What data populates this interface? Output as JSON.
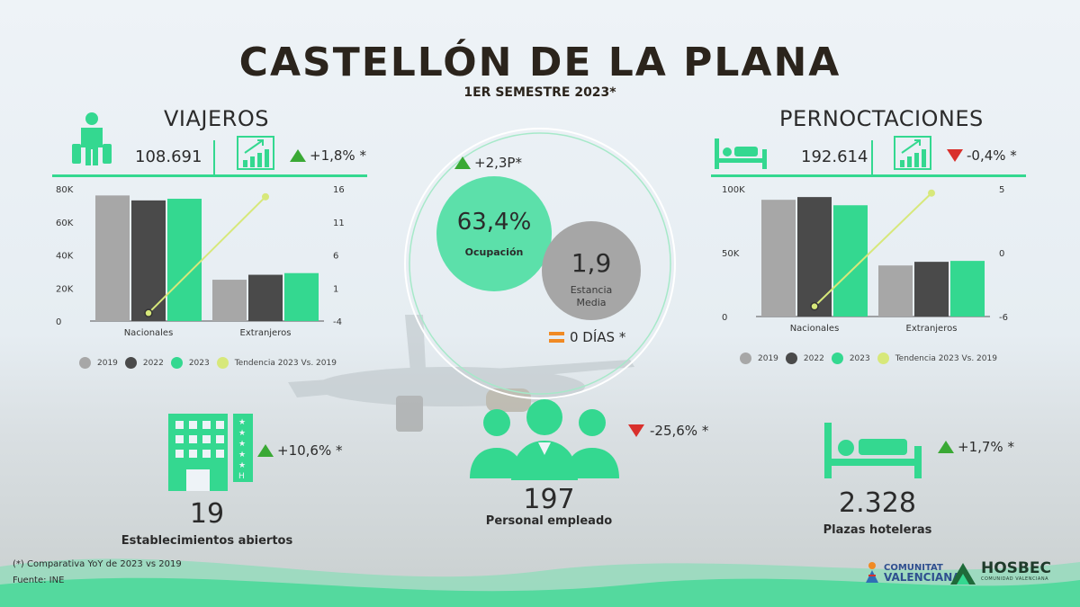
{
  "header": {
    "title": "CASTELLÓN DE LA PLANA",
    "subtitle": "1ER SEMESTRE 2023*"
  },
  "colors": {
    "c2019": "#a7a7a7",
    "c2022": "#4a4a4a",
    "c2023": "#34d890",
    "trend": "#d7e87a",
    "up": "#3aa935",
    "down": "#d9302c",
    "equal": "#f08a24"
  },
  "viajeros": {
    "title": "VIAJEROS",
    "value": "108.691",
    "change": "+1,8% *",
    "direction": "up",
    "icon": "traveler-icon",
    "growth_icon": "growth-chart-icon"
  },
  "pernoctaciones": {
    "title": "PERNOCTACIONES",
    "value": "192.614",
    "change": "-0,4% *",
    "direction": "down",
    "icon": "bed-icon",
    "growth_icon": "growth-chart-icon"
  },
  "ocupacion": {
    "change": "+2,3P*",
    "value": "63,4%",
    "label": "Ocupación"
  },
  "estancia": {
    "value": "1,9",
    "label_line1": "Estancia",
    "label_line2": "Media",
    "change": "0 DÍAS *"
  },
  "establecimientos": {
    "value": "19",
    "label": "Establecimientos abiertos",
    "change": "+10,6% *",
    "icon": "hotel-building-icon"
  },
  "personal": {
    "value": "197",
    "label": "Personal empleado",
    "change": "-25,6% *",
    "icon": "staff-people-icon"
  },
  "plazas": {
    "value": "2.328",
    "label": "Plazas hoteleras",
    "change": "+1,7% *",
    "icon": "bed-icon"
  },
  "footnote": "(*) Comparativa YoY de 2023 vs 2019",
  "source": "Fuente: INE",
  "logos": {
    "cv_line1": "COMUNITAT",
    "cv_line2": "VALENCIANA",
    "hosbec": "HOSBEC",
    "hosbec_sub": "COMUNIDAD VALENCIANA"
  },
  "legend": {
    "l2019": "2019",
    "l2022": "2022",
    "l2023": "2023",
    "trend": "Tendencia 2023 Vs. 2019"
  },
  "chart_data": [
    {
      "type": "bar",
      "name": "viajeros",
      "categories": [
        "Nacionales",
        "Extranjeros"
      ],
      "series": [
        {
          "name": "2019",
          "values": [
            76000,
            25000
          ]
        },
        {
          "name": "2022",
          "values": [
            73000,
            28000
          ]
        },
        {
          "name": "2023",
          "values": [
            74000,
            29000
          ]
        }
      ],
      "trend": {
        "name": "Tendencia 2023 Vs. 2019",
        "values": [
          -2.8,
          14.8
        ]
      },
      "ylim": [
        0,
        80000
      ],
      "yticks": [
        "0",
        "20K",
        "40K",
        "60K",
        "80K"
      ],
      "y2lim": [
        -4,
        16
      ],
      "y2ticks": [
        "-4",
        "1",
        "6",
        "11",
        "16"
      ]
    },
    {
      "type": "bar",
      "name": "pernoctaciones",
      "categories": [
        "Nacionales",
        "Extranjeros"
      ],
      "series": [
        {
          "name": "2019",
          "values": [
            128000,
            56000
          ]
        },
        {
          "name": "2022",
          "values": [
            131000,
            60000
          ]
        },
        {
          "name": "2023",
          "values": [
            122000,
            61000
          ]
        }
      ],
      "trend": {
        "name": "Tendencia 2023 Vs. 2019",
        "values": [
          -4.8,
          8.5
        ]
      },
      "ylim": [
        0,
        140000
      ],
      "yticks": [
        "0",
        "50K",
        "100K"
      ],
      "y2lim": [
        -6,
        9
      ],
      "y2ticks": [
        "-6",
        "0",
        "5"
      ]
    }
  ]
}
